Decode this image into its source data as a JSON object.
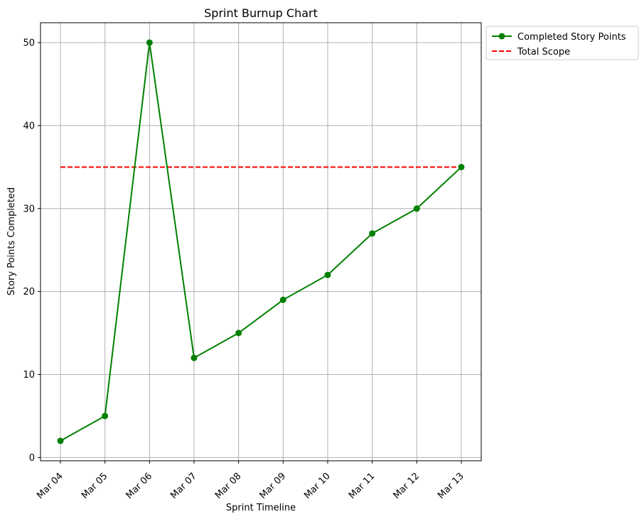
{
  "chart_data": {
    "type": "line",
    "title": "Sprint Burnup Chart",
    "xlabel": "Sprint Timeline",
    "ylabel": "Story Points Completed",
    "categories": [
      "Mar 04",
      "Mar 05",
      "Mar 06",
      "Mar 07",
      "Mar 08",
      "Mar 09",
      "Mar 10",
      "Mar 11",
      "Mar 12",
      "Mar 13"
    ],
    "ylim": [
      -0.4,
      52.4
    ],
    "yticks": [
      0,
      10,
      20,
      30,
      40,
      50
    ],
    "grid": true,
    "legend_position": "outside top-right",
    "series": [
      {
        "name": "Completed Story Points",
        "values": [
          2,
          5,
          50,
          12,
          15,
          19,
          22,
          27,
          30,
          35
        ],
        "color": "#008000",
        "style": "solid",
        "marker": "circle"
      },
      {
        "name": "Total Scope",
        "values": [
          35,
          35,
          35,
          35,
          35,
          35,
          35,
          35,
          35,
          35
        ],
        "color": "#ff0000",
        "style": "dashed",
        "marker": "none"
      }
    ]
  }
}
